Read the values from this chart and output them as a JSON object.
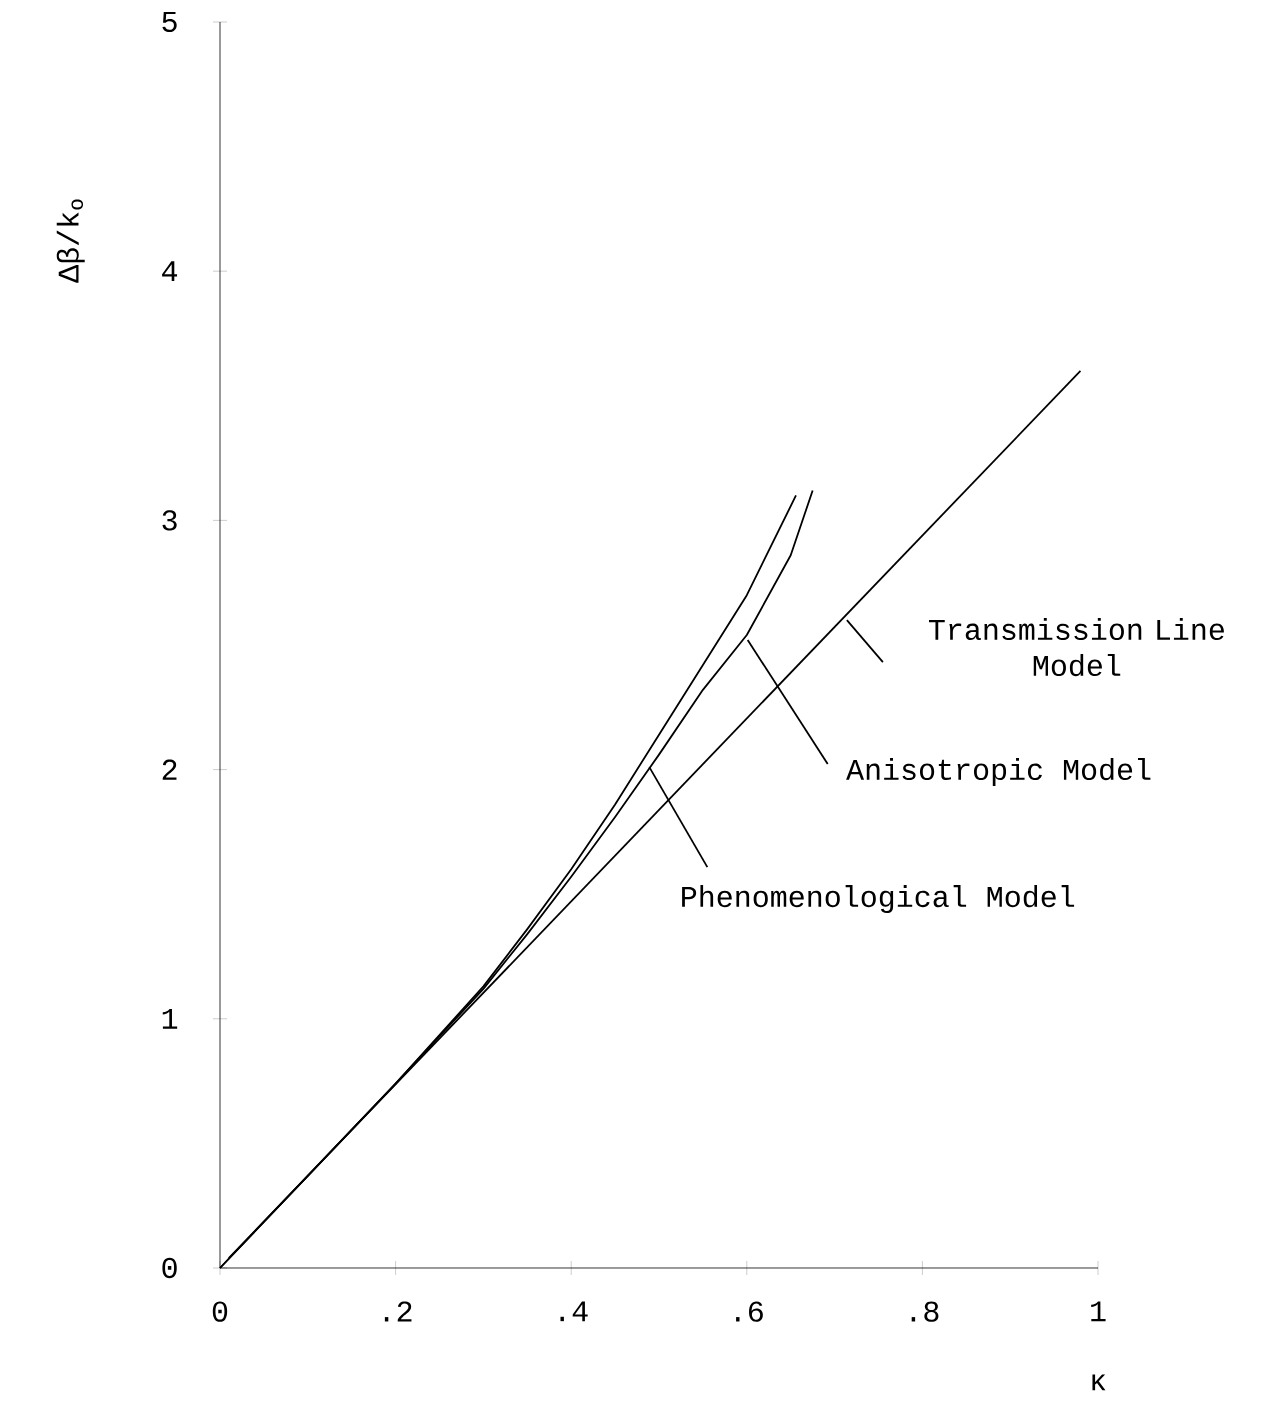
{
  "chart_data": {
    "type": "line",
    "xlabel": "κ",
    "ylabel": "Δβ/k$_{o}$",
    "xlim": [
      0,
      1
    ],
    "ylim": [
      0,
      5
    ],
    "xticks": [
      0,
      {
        "value": 0.2,
        "label": ".2"
      },
      {
        "value": 0.4,
        "label": ".4"
      },
      {
        "value": 0.6,
        "label": ".6"
      },
      {
        "value": 0.8,
        "label": ".8"
      },
      1
    ],
    "yticks": [
      0,
      1,
      2,
      3,
      4,
      5
    ],
    "series": [
      {
        "color": "#000000",
        "x": [
          0.01,
          0.98
        ],
        "values": [
          0.04,
          3.6
        ]
      },
      {
        "color": "#000000",
        "x": [
          0,
          0.1,
          0.2,
          0.3,
          0.35,
          0.4,
          0.45,
          0.5,
          0.55,
          0.6,
          0.65,
          0.675
        ],
        "values": [
          0,
          0.37,
          0.74,
          1.12,
          1.34,
          1.57,
          1.81,
          2.06,
          2.32,
          2.54,
          2.86,
          3.12
        ]
      },
      {
        "color": "#000000",
        "x": [
          0,
          0.1,
          0.2,
          0.3,
          0.35,
          0.4,
          0.45,
          0.5,
          0.55,
          0.6,
          0.656
        ],
        "values": [
          0,
          0.37,
          0.74,
          1.13,
          1.36,
          1.6,
          1.86,
          2.14,
          2.42,
          2.7,
          3.1
        ]
      }
    ],
    "annotations": [
      {
        "text": "Transmission Line Model",
        "x": 0.714,
        "y": 2.6
      },
      {
        "text": "Anisotropic Model",
        "x": 0.601,
        "y": 2.52
      },
      {
        "text": "Phenomenological Model",
        "x": 0.489,
        "y": 2.01
      }
    ]
  }
}
